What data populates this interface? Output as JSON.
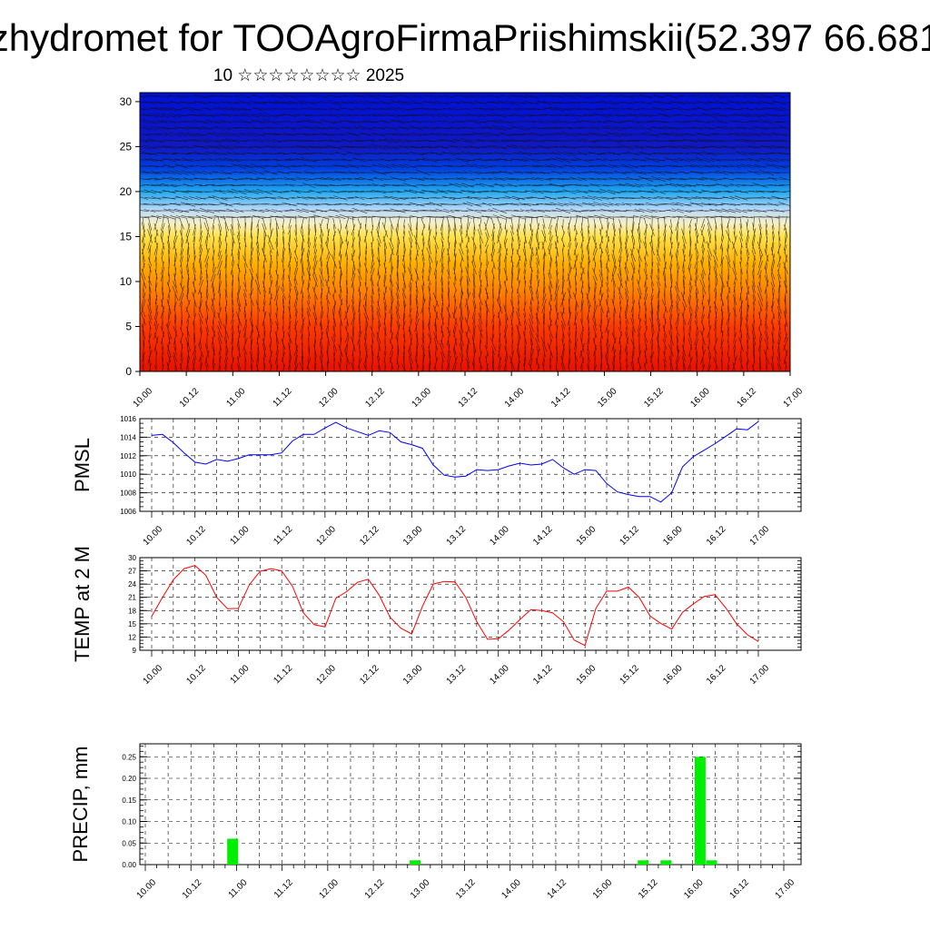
{
  "page": {
    "title": "zhydromet for TOOAgroFirmaPriishimskii(52.397 66.681",
    "subtitle": "10 ☆☆☆☆☆☆☆☆ 2025"
  },
  "colors": {
    "pmsl_line": "#0000ff",
    "temp_line": "#ff0000",
    "precip_bar": "#00ee00",
    "cross_section_low": "#e81000",
    "cross_section_high": "#0010d8"
  },
  "chart_data": [
    {
      "type": "heatmap",
      "name": "cross-section",
      "x_tick_labels": [
        "10.00",
        "10.12",
        "11.00",
        "11.12",
        "12.00",
        "12.12",
        "13.00",
        "13.12",
        "14.00",
        "14.12",
        "15.00",
        "15.12",
        "16.00",
        "16.12",
        "17.00"
      ],
      "y_tick_labels": [
        "0",
        "5",
        "10",
        "15",
        "20",
        "25",
        "30"
      ],
      "ylim": [
        0,
        31
      ],
      "color_levels_by_height": [
        {
          "height": 0,
          "color": "#e81000"
        },
        {
          "height": 5,
          "color": "#ff3a00"
        },
        {
          "height": 9,
          "color": "#ff8200"
        },
        {
          "height": 12,
          "color": "#ffb000"
        },
        {
          "height": 15,
          "color": "#ffe24a"
        },
        {
          "height": 16.5,
          "color": "#f6f0c8"
        },
        {
          "height": 18,
          "color": "#b8d8f8"
        },
        {
          "height": 20,
          "color": "#20a8f0"
        },
        {
          "height": 22.5,
          "color": "#0040e0"
        },
        {
          "height": 25,
          "color": "#1018c0"
        },
        {
          "height": 31,
          "color": "#0010d8"
        }
      ],
      "wind_vectors": true
    },
    {
      "type": "line",
      "name": "pmsl",
      "ylabel": "PMSL",
      "ylim": [
        1006,
        1016
      ],
      "y_tick_labels": [
        "1006",
        "1008",
        "1010",
        "1012",
        "1014",
        "1016"
      ],
      "x_tick_labels": [
        "10.00",
        "10.12",
        "11.00",
        "11.12",
        "12.00",
        "12.12",
        "13.00",
        "13.12",
        "14.00",
        "14.12",
        "15.00",
        "15.12",
        "16.00",
        "16.12",
        "17.00"
      ],
      "x": [
        0,
        3,
        6,
        9,
        12,
        15,
        18,
        21,
        24,
        27,
        30,
        33,
        36,
        39,
        42,
        45,
        48,
        51,
        54,
        57,
        60,
        63,
        66,
        69,
        72,
        75,
        78,
        81,
        84,
        87,
        90,
        93,
        96,
        99,
        102,
        105,
        108,
        111,
        114,
        117,
        120,
        123,
        126,
        129,
        132,
        135,
        138,
        141,
        144,
        147,
        150,
        153,
        156,
        159,
        162,
        165,
        168
      ],
      "values": [
        1014.2,
        1014.3,
        1013.4,
        1012.3,
        1011.3,
        1011.1,
        1011.6,
        1011.4,
        1011.7,
        1012.1,
        1012.1,
        1012.1,
        1012.3,
        1013.6,
        1014.3,
        1014.3,
        1015.0,
        1015.6,
        1015.0,
        1014.6,
        1014.2,
        1014.7,
        1014.5,
        1013.5,
        1013.2,
        1012.8,
        1011.0,
        1009.9,
        1009.7,
        1009.8,
        1010.5,
        1010.4,
        1010.5,
        1010.9,
        1011.2,
        1011.0,
        1011.1,
        1011.6,
        1010.7,
        1010.0,
        1010.5,
        1010.4,
        1009.0,
        1008.1,
        1007.8,
        1007.6,
        1007.6,
        1007.0,
        1008.0,
        1010.8,
        1011.9,
        1012.6,
        1013.3,
        1014.1,
        1014.9,
        1014.8,
        1015.7
      ]
    },
    {
      "type": "line",
      "name": "temp",
      "ylabel": "TEMP at 2 M",
      "ylim": [
        9,
        30
      ],
      "y_tick_labels": [
        "9",
        "12",
        "15",
        "18",
        "21",
        "24",
        "27",
        "30"
      ],
      "x_tick_labels": [
        "10.00",
        "10.12",
        "11.00",
        "11.12",
        "12.00",
        "12.12",
        "13.00",
        "13.12",
        "14.00",
        "14.12",
        "15.00",
        "15.12",
        "16.00",
        "16.12",
        "17.00"
      ],
      "x": [
        0,
        3,
        6,
        9,
        12,
        15,
        18,
        21,
        24,
        27,
        30,
        33,
        36,
        39,
        42,
        45,
        48,
        51,
        54,
        57,
        60,
        63,
        66,
        69,
        72,
        75,
        78,
        81,
        84,
        87,
        90,
        93,
        96,
        99,
        102,
        105,
        108,
        111,
        114,
        117,
        120,
        123,
        126,
        129,
        132,
        135,
        138,
        141,
        144,
        147,
        150,
        153,
        156,
        159,
        162,
        165,
        168
      ],
      "values": [
        16.7,
        21.0,
        25.0,
        27.5,
        28.2,
        26.0,
        21.0,
        18.4,
        18.5,
        23.8,
        26.9,
        27.5,
        27.0,
        23.5,
        17.5,
        14.8,
        14.3,
        20.8,
        22.3,
        24.4,
        25.1,
        21.5,
        16.5,
        14.0,
        12.7,
        19.0,
        24.0,
        24.6,
        24.5,
        21.0,
        15.5,
        11.5,
        11.6,
        13.6,
        16.0,
        18.2,
        18.0,
        17.5,
        15.5,
        11.3,
        10.1,
        18.5,
        22.4,
        22.4,
        23.3,
        21.0,
        16.8,
        15.1,
        13.8,
        17.6,
        19.5,
        21.2,
        21.6,
        18.6,
        15.0,
        12.5,
        11.0
      ]
    },
    {
      "type": "bar",
      "name": "precip",
      "ylabel": "PRECIP, mm",
      "ylim": [
        0,
        0.28
      ],
      "y_tick_labels": [
        "0.00",
        "0.05",
        "0.10",
        "0.15",
        "0.20",
        "0.25"
      ],
      "x_tick_labels": [
        "10.00",
        "10.12",
        "11.00",
        "11.12",
        "12.00",
        "12.12",
        "13.00",
        "13.12",
        "14.00",
        "14.12",
        "15.00",
        "15.12",
        "16.00",
        "16.12",
        "17.00"
      ],
      "bars": [
        {
          "x": 23,
          "value": 0.06
        },
        {
          "x": 71,
          "value": 0.01
        },
        {
          "x": 131,
          "value": 0.01
        },
        {
          "x": 137,
          "value": 0.01
        },
        {
          "x": 146,
          "value": 0.25
        },
        {
          "x": 149,
          "value": 0.01
        }
      ]
    }
  ]
}
